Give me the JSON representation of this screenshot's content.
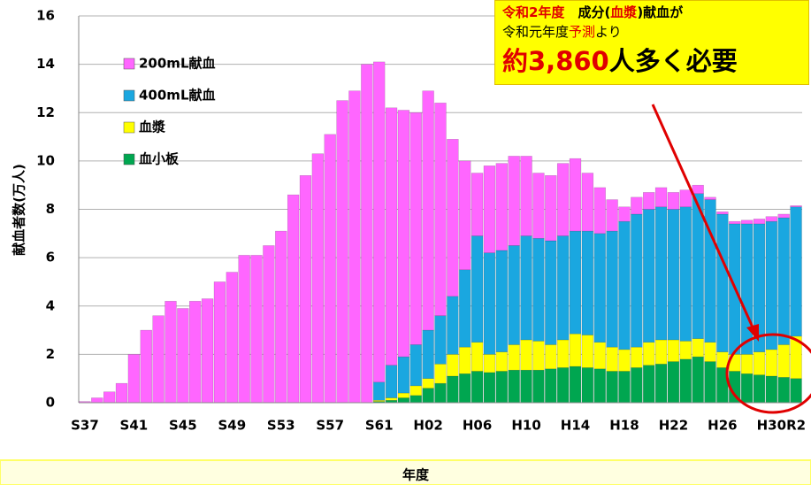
{
  "chart_data": {
    "type": "stacked_bar",
    "y_label": "献血者数(万人)",
    "x_label": "年度",
    "categories": [
      "S37",
      null,
      null,
      null,
      "S41",
      null,
      null,
      null,
      "S45",
      null,
      null,
      null,
      "S49",
      null,
      null,
      null,
      "S53",
      null,
      null,
      null,
      "S57",
      null,
      null,
      null,
      "S61",
      null,
      null,
      null,
      "H02",
      null,
      null,
      null,
      "H06",
      null,
      null,
      null,
      "H10",
      null,
      null,
      null,
      "H14",
      null,
      null,
      null,
      "H18",
      null,
      null,
      null,
      "H22",
      null,
      null,
      null,
      "H26",
      null,
      null,
      null,
      "H30",
      null,
      "R2"
    ],
    "series": [
      {
        "name": "血小板",
        "color": "#00a650",
        "values": [
          0,
          0,
          0,
          0,
          0,
          0,
          0,
          0,
          0,
          0,
          0,
          0,
          0,
          0,
          0,
          0,
          0,
          0,
          0,
          0,
          0,
          0,
          0,
          0,
          0.05,
          0.1,
          0.2,
          0.3,
          0.6,
          0.8,
          1.1,
          1.2,
          1.3,
          1.25,
          1.3,
          1.35,
          1.35,
          1.35,
          1.4,
          1.45,
          1.5,
          1.45,
          1.4,
          1.3,
          1.3,
          1.45,
          1.55,
          1.6,
          1.7,
          1.8,
          1.9,
          1.7,
          1.45,
          1.3,
          1.2,
          1.15,
          1.1,
          1.05,
          1.0
        ]
      },
      {
        "name": "血漿",
        "color": "#ffff00",
        "values": [
          0,
          0,
          0,
          0,
          0,
          0,
          0,
          0,
          0,
          0,
          0,
          0,
          0,
          0,
          0,
          0,
          0,
          0,
          0,
          0,
          0,
          0,
          0,
          0,
          0.05,
          0.1,
          0.2,
          0.4,
          0.4,
          0.8,
          0.9,
          1.1,
          1.2,
          0.75,
          0.8,
          1.05,
          1.25,
          1.2,
          1.0,
          1.15,
          1.35,
          1.35,
          1.1,
          1.0,
          0.9,
          0.85,
          0.95,
          1.0,
          0.9,
          0.75,
          0.75,
          0.8,
          0.65,
          0.7,
          0.8,
          0.95,
          1.1,
          1.35,
          1.75
        ]
      },
      {
        "name": "400mL献血",
        "color": "#1aa7e0",
        "values": [
          0,
          0,
          0,
          0,
          0,
          0,
          0,
          0,
          0,
          0,
          0,
          0,
          0,
          0,
          0,
          0,
          0,
          0,
          0,
          0,
          0,
          0,
          0,
          0,
          0.75,
          1.35,
          1.5,
          1.7,
          2.0,
          2.0,
          2.4,
          3.2,
          4.4,
          4.2,
          4.2,
          4.1,
          4.3,
          4.25,
          4.3,
          4.3,
          4.25,
          4.3,
          4.5,
          4.8,
          5.3,
          5.5,
          5.5,
          5.5,
          5.4,
          5.55,
          6.0,
          5.9,
          5.7,
          5.4,
          5.4,
          5.3,
          5.3,
          5.25,
          5.35
        ]
      },
      {
        "name": "200mL献血",
        "color": "#ff66ff",
        "values": [
          0.05,
          0.2,
          0.45,
          0.8,
          2.0,
          3.0,
          3.6,
          4.2,
          3.9,
          4.2,
          4.3,
          5.0,
          5.4,
          6.1,
          6.1,
          6.5,
          7.1,
          8.6,
          9.4,
          10.3,
          11.1,
          12.5,
          12.9,
          14.0,
          13.25,
          10.65,
          10.2,
          9.6,
          9.9,
          8.8,
          6.5,
          4.5,
          2.6,
          3.6,
          3.6,
          3.7,
          3.3,
          2.7,
          2.7,
          3.0,
          3.0,
          2.4,
          1.9,
          1.3,
          0.6,
          0.7,
          0.7,
          0.8,
          0.7,
          0.7,
          0.35,
          0.1,
          0.1,
          0.1,
          0.15,
          0.2,
          0.2,
          0.15,
          0.05
        ]
      }
    ],
    "ylim": [
      0,
      16
    ],
    "yticks": [
      0,
      2,
      4,
      6,
      8,
      10,
      12,
      14,
      16
    ],
    "grid": true,
    "annotation": [
      [
        "令和2年度",
        "　成分(",
        "血漿",
        ")献血が"
      ],
      [
        "令和元年度",
        "予測",
        "より"
      ],
      [
        "約3,860",
        "人多く必要"
      ]
    ]
  }
}
